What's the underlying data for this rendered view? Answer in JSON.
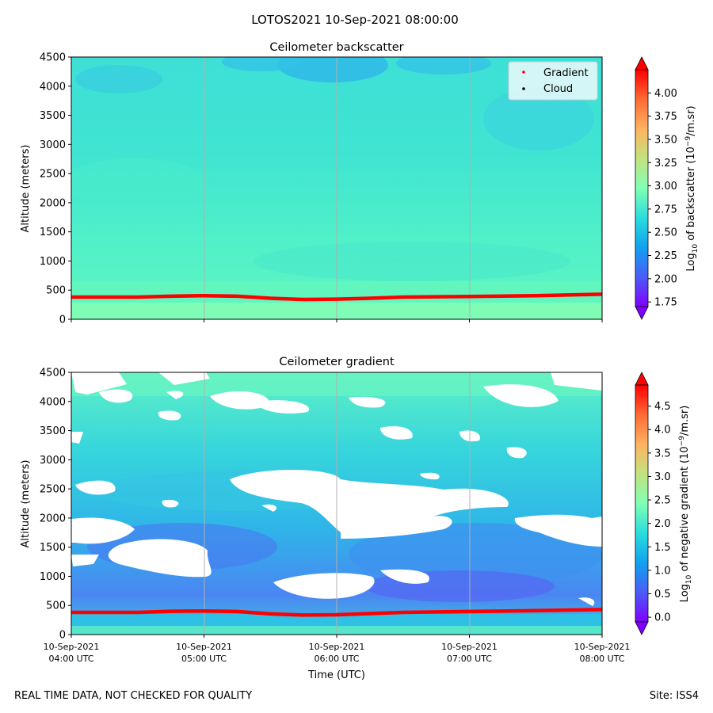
{
  "suptitle": "LOTOS2021 10-Sep-2021 08:00:00",
  "footer_left": "REAL TIME DATA, NOT CHECKED FOR QUALITY",
  "footer_right": "Site: ISS4",
  "colors": {
    "gradient_line": "#ff0000",
    "grid": "#b0b0b0",
    "missing": "#ffffff"
  },
  "chart_data": [
    {
      "type": "heatmap",
      "title": "Ceilometer backscatter",
      "ylabel": "Altitude (meters)",
      "ylim": [
        0,
        4500
      ],
      "yticks": [
        "0",
        "500",
        "1000",
        "1500",
        "2000",
        "2500",
        "3000",
        "3500",
        "4000",
        "4500"
      ],
      "x_range": [
        "2021-09-10T04:00Z",
        "2021-09-10T08:00Z"
      ],
      "xticks": [
        {
          "date": "10-Sep-2021",
          "time": "04:00 UTC"
        },
        {
          "date": "10-Sep-2021",
          "time": "05:00 UTC"
        },
        {
          "date": "10-Sep-2021",
          "time": "06:00 UTC"
        },
        {
          "date": "10-Sep-2021",
          "time": "07:00 UTC"
        },
        {
          "date": "10-Sep-2021",
          "time": "08:00 UTC"
        }
      ],
      "show_xtick_labels": false,
      "legend": {
        "placement": "top-right",
        "entries": [
          {
            "name": "Gradient",
            "color": "#ff0000"
          },
          {
            "name": "Cloud",
            "color": "#000000"
          }
        ]
      },
      "colorbar": {
        "label_prefix": "Log",
        "label_sub": "10",
        "label_mid": " of backscatter (10",
        "label_sup": "−9",
        "label_suffix": "/m.sr)",
        "range": [
          1.7,
          4.25
        ],
        "ticks": [
          "1.75",
          "2.00",
          "2.25",
          "2.50",
          "2.75",
          "3.00",
          "3.25",
          "3.50",
          "3.75",
          "4.00"
        ],
        "colormap": "rainbow"
      },
      "gradient_series": [
        [
          "04:00",
          380
        ],
        [
          "04:30",
          380
        ],
        [
          "04:45",
          395
        ],
        [
          "05:00",
          405
        ],
        [
          "05:15",
          395
        ],
        [
          "05:30",
          360
        ],
        [
          "05:45",
          340
        ],
        [
          "06:00",
          345
        ],
        [
          "06:15",
          360
        ],
        [
          "06:30",
          380
        ],
        [
          "07:00",
          390
        ],
        [
          "07:30",
          405
        ],
        [
          "08:00",
          430
        ]
      ]
    },
    {
      "type": "heatmap",
      "title": "Ceilometer gradient",
      "xlabel": "Time (UTC)",
      "ylabel": "Altitude (meters)",
      "ylim": [
        0,
        4500
      ],
      "yticks": [
        "0",
        "500",
        "1000",
        "1500",
        "2000",
        "2500",
        "3000",
        "3500",
        "4000",
        "4500"
      ],
      "x_range": [
        "2021-09-10T04:00Z",
        "2021-09-10T08:00Z"
      ],
      "xticks": [
        {
          "date": "10-Sep-2021",
          "time": "04:00 UTC"
        },
        {
          "date": "10-Sep-2021",
          "time": "05:00 UTC"
        },
        {
          "date": "10-Sep-2021",
          "time": "06:00 UTC"
        },
        {
          "date": "10-Sep-2021",
          "time": "07:00 UTC"
        },
        {
          "date": "10-Sep-2021",
          "time": "08:00 UTC"
        }
      ],
      "show_xtick_labels": true,
      "colorbar": {
        "label_prefix": "Log",
        "label_sub": "10",
        "label_mid": " of negative gradient (10",
        "label_sup": "−9",
        "label_suffix": "/m.sr)",
        "range": [
          -0.1,
          4.95
        ],
        "ticks": [
          "0.0",
          "0.5",
          "1.0",
          "1.5",
          "2.0",
          "2.5",
          "3.0",
          "3.5",
          "4.0",
          "4.5"
        ],
        "colormap": "rainbow"
      },
      "gradient_series": [
        [
          "04:00",
          380
        ],
        [
          "04:30",
          380
        ],
        [
          "04:45",
          400
        ],
        [
          "05:00",
          405
        ],
        [
          "05:15",
          395
        ],
        [
          "05:30",
          355
        ],
        [
          "05:45",
          335
        ],
        [
          "06:00",
          340
        ],
        [
          "06:15",
          360
        ],
        [
          "06:30",
          380
        ],
        [
          "07:00",
          395
        ],
        [
          "07:30",
          410
        ],
        [
          "08:00",
          430
        ]
      ]
    }
  ]
}
